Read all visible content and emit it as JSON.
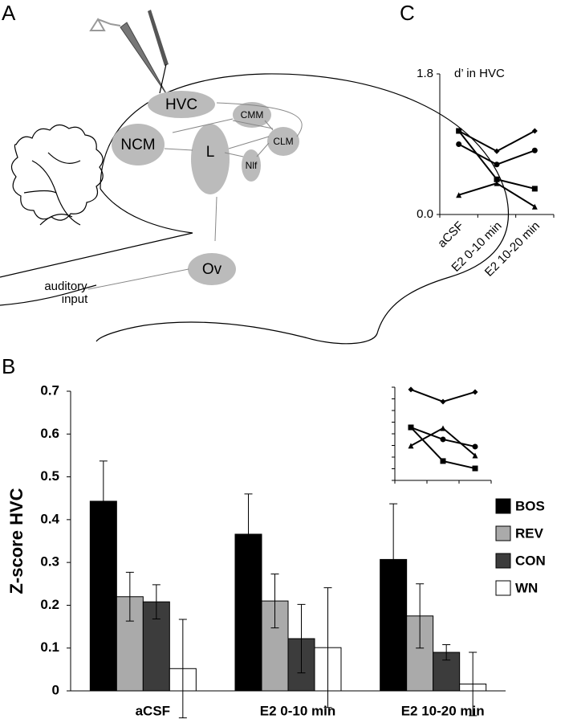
{
  "panels": {
    "a": "A",
    "b": "B",
    "c": "C"
  },
  "diagram": {
    "hvc": "HVC",
    "ncm": "NCM",
    "cmm": "CMM",
    "l": "L",
    "clm": "CLM",
    "nif": "Nlf",
    "ov": "Ov",
    "auditory_input": [
      "auditory",
      "input"
    ]
  },
  "chart_data": [
    {
      "type": "line",
      "title": "d’ in HVC",
      "categories": [
        "aCSF",
        "E2 0-10 min",
        "E2 10-20 min"
      ],
      "xtick_rotation": -45,
      "ylim": [
        0,
        1.8
      ],
      "yticks": [
        {
          "value": 0,
          "label": "0.0"
        },
        1.8
      ],
      "series": [
        {
          "marker": "diamond",
          "color": "#000000",
          "values": [
            1.07,
            0.81,
            1.07
          ]
        },
        {
          "marker": "circle",
          "color": "#000000",
          "values": [
            0.9,
            0.64,
            0.82
          ]
        },
        {
          "marker": "square",
          "color": "#000000",
          "values": [
            1.07,
            0.45,
            0.33
          ]
        },
        {
          "marker": "triangle",
          "color": "#000000",
          "values": [
            0.25,
            0.4,
            0.1
          ]
        }
      ]
    },
    {
      "type": "bar",
      "ylabel": "Z-score HVC",
      "categories": [
        "aCSF",
        "E2 0-10 min",
        "E2 10-20 min"
      ],
      "ylim": [
        0,
        0.7
      ],
      "yticks": [
        0,
        0.1,
        0.2,
        0.3,
        0.4,
        0.5,
        0.6,
        0.7
      ],
      "legend": "right",
      "series": [
        {
          "name": "BOS",
          "color": "#000000",
          "values": [
            0.443,
            0.366,
            0.307
          ],
          "errors": [
            0.094,
            0.094,
            0.13
          ]
        },
        {
          "name": "REV",
          "color": "#aaaaaa",
          "values": [
            0.22,
            0.21,
            0.175
          ],
          "errors": [
            0.057,
            0.063,
            0.075
          ]
        },
        {
          "name": "CON",
          "color": "#3c3c3c",
          "values": [
            0.208,
            0.122,
            0.09
          ],
          "errors": [
            0.04,
            0.08,
            0.018
          ]
        },
        {
          "name": "WN",
          "color": "#ffffff",
          "values": [
            0.052,
            0.101,
            0.016
          ],
          "errors": [
            0.115,
            0.14,
            0.074
          ]
        }
      ]
    },
    {
      "type": "line",
      "tick_labels": false,
      "ylim": [
        0,
        8
      ],
      "yticks": [
        0,
        1,
        2,
        3,
        4,
        5,
        6,
        7,
        8
      ],
      "series": [
        {
          "marker": "diamond",
          "color": "#000000",
          "values": [
            7.8,
            6.76,
            7.59
          ]
        },
        {
          "marker": "circle",
          "color": "#000000",
          "values": [
            4.55,
            3.52,
            2.9
          ]
        },
        {
          "marker": "square",
          "color": "#000000",
          "values": [
            4.55,
            1.66,
            1.03
          ]
        },
        {
          "marker": "triangle",
          "color": "#000000",
          "values": [
            2.97,
            4.48,
            2.14
          ]
        }
      ]
    }
  ]
}
